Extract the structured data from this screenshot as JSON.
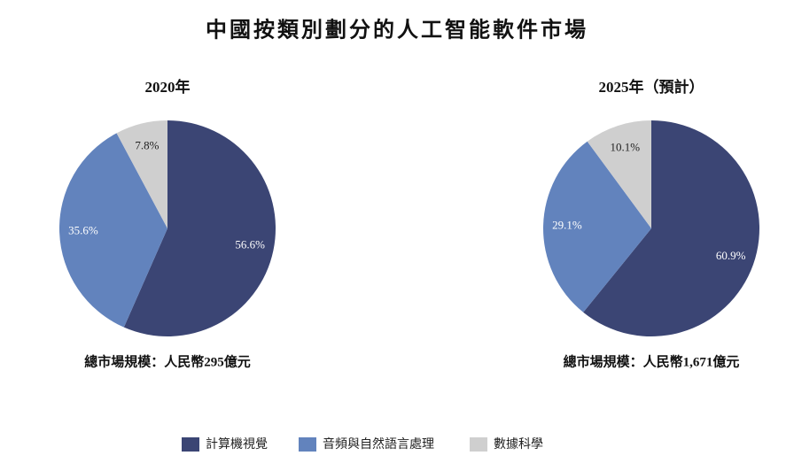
{
  "title": "中國按類別劃分的人工智能軟件市場",
  "legend": [
    {
      "name": "計算機視覺",
      "color": "#3b4574"
    },
    {
      "name": "音頻與自然語言處理",
      "color": "#6283bd"
    },
    {
      "name": "數據科學",
      "color": "#cfcfcf"
    }
  ],
  "chart_data": [
    {
      "type": "pie",
      "title": "2020年",
      "values": [
        56.6,
        35.6,
        7.8
      ],
      "value_labels": [
        "56.6%",
        "35.6%",
        "7.8%"
      ],
      "note": "總市場規模：人民幣295億元"
    },
    {
      "type": "pie",
      "title": "2025年（預計）",
      "values": [
        60.9,
        29.1,
        10.1
      ],
      "value_labels": [
        "60.9%",
        "29.1%",
        "10.1%"
      ],
      "note": "總市場規模：人民幣1,671億元"
    }
  ]
}
